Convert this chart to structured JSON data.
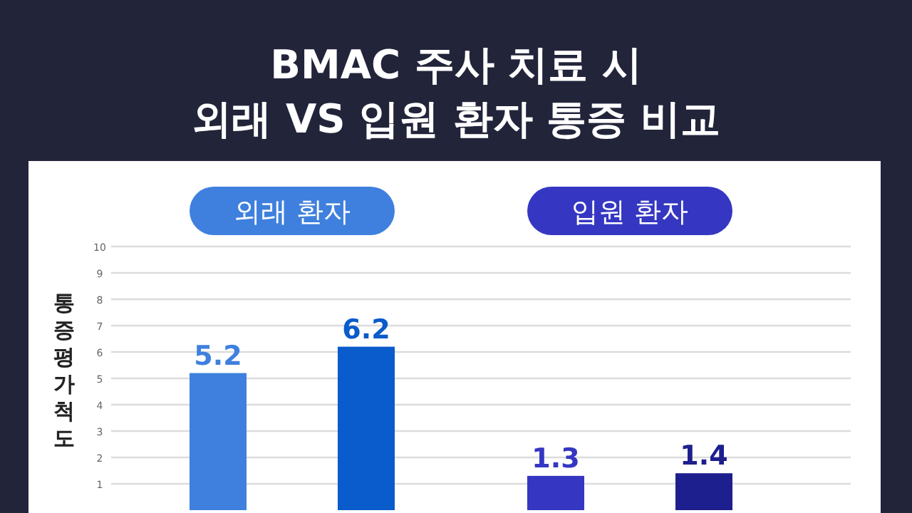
{
  "chart_data": {
    "type": "bar",
    "title": "BMAC 주사 치료 시\n외래 VS 입원 환자 통증 비교",
    "ylabel": "통증평가척도",
    "annotations": [
      "외래 환자",
      "입원 환자"
    ],
    "categories": [
      null,
      null,
      null,
      null
    ],
    "values": [
      5.2,
      6.2,
      1.3,
      1.4
    ],
    "colors": [
      "#3f80de",
      "#0a5bcb",
      "#3537c2",
      "#1d1f8e"
    ],
    "ylim": [
      0,
      10
    ],
    "yticks": [
      1,
      2,
      3,
      4,
      5,
      6,
      7,
      8,
      9,
      10
    ],
    "grid": "y",
    "data_labels": true
  }
}
